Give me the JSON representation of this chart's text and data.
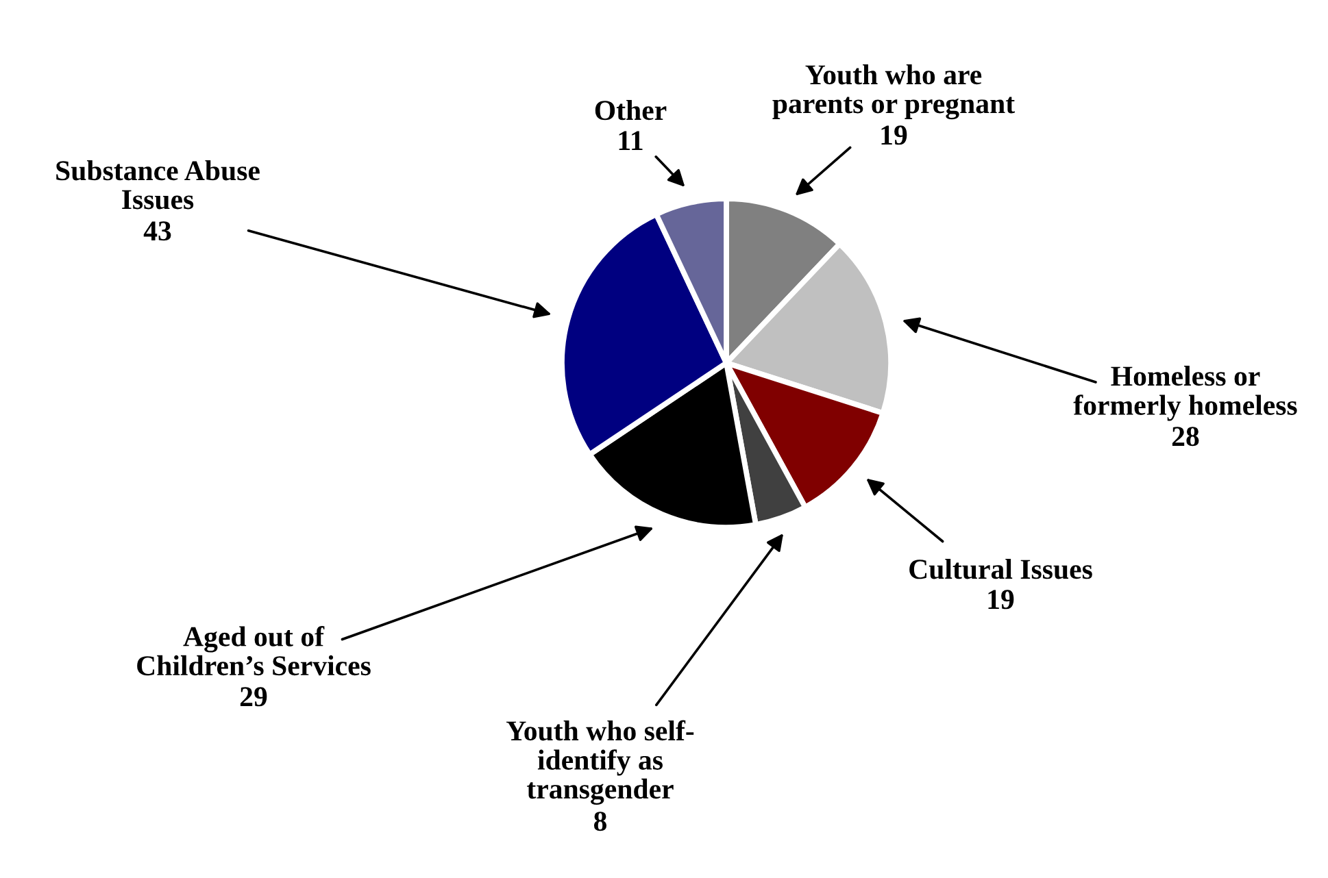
{
  "chart_data": {
    "type": "pie",
    "categories": [
      "Youth who are\nparents or pregnant",
      "Homeless or\nformerly homeless",
      "Cultural Issues",
      "Youth who self-\nidentify as\ntransgender",
      "Aged out of\nChildren’s Services",
      "Substance Abuse\nIssues",
      "Other"
    ],
    "values": [
      19,
      28,
      19,
      8,
      29,
      43,
      11
    ],
    "colors": [
      "#808080",
      "#c0c0c0",
      "#800000",
      "#404040",
      "#000000",
      "#000080",
      "#666699"
    ],
    "data_labels": true,
    "legend": false
  }
}
